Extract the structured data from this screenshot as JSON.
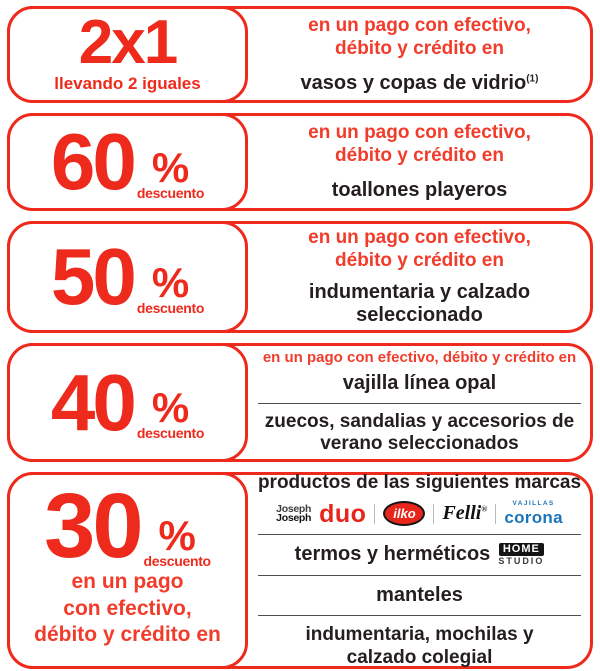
{
  "colors": {
    "border_red": "#ee2a1c",
    "number_red": "#ee2a1c",
    "text_red": "#f23c2b",
    "dark_text": "#251e20",
    "corona_blue": "#1b75bb",
    "divider_gray": "#4f4f4f",
    "duo_ilko_red": "#e8251a"
  },
  "cards": [
    {
      "discount_main": "2x1",
      "discount_sub": "llevando 2 iguales",
      "payment_line_1": "en un pago con efectivo,",
      "payment_line_2": "débito y crédito en",
      "item": "vasos y copas de vidrio",
      "item_superscript": "(1)"
    },
    {
      "discount_value": "60",
      "discount_percent": "%",
      "discount_sub": "descuento",
      "payment_line_1": "en un pago con efectivo,",
      "payment_line_2": "débito y crédito en",
      "item": "toallones playeros"
    },
    {
      "discount_value": "50",
      "discount_percent": "%",
      "discount_sub": "descuento",
      "payment_line_1": "en un pago con efectivo,",
      "payment_line_2": "débito y crédito en",
      "item": "indumentaria y calzado seleccionado"
    },
    {
      "discount_value": "40",
      "discount_percent": "%",
      "discount_sub": "descuento",
      "payment_line": "en un pago con efectivo, débito y crédito en",
      "item_1": "vajilla línea opal",
      "item_2": "zuecos, sandalias y accesorios de verano seleccionados"
    },
    {
      "discount_value": "30",
      "discount_percent": "%",
      "discount_sub": "descuento",
      "payment_line_1": "en un pago",
      "payment_line_2": "con efectivo,",
      "payment_line_3": "débito y crédito en",
      "row_1_title": "productos de las siguientes marcas",
      "brands": {
        "joseph_line_1": "Joseph",
        "joseph_line_2": "Joseph",
        "duo": "duo",
        "ilko": "ilko",
        "felli": "Felli",
        "felli_mark": "®",
        "corona_top": "VAJILLAS",
        "corona": "corona"
      },
      "row_2_item": "termos y herméticos",
      "home_studio_top": "HOME",
      "home_studio_bottom": "STUDIO",
      "row_3_item": "manteles",
      "row_4_item": "indumentaria, mochilas y calzado colegial"
    }
  ]
}
